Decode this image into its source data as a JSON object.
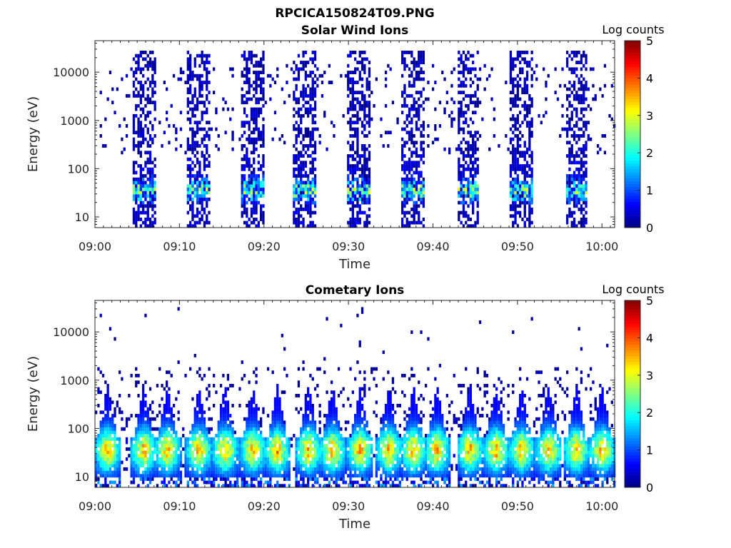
{
  "figure": {
    "title": "RPCICA150824T09.PNG"
  },
  "chart_data": [
    {
      "type": "heatmap",
      "title": "Solar Wind Ions",
      "xlabel": "Time",
      "ylabel": "Energy (eV)",
      "y_scale": "log",
      "ylim": [
        6,
        45000
      ],
      "xlim_minutes": [
        0,
        61.5
      ],
      "x_ticks": [
        "09:00",
        "09:10",
        "09:20",
        "09:30",
        "09:40",
        "09:50",
        "10:00"
      ],
      "y_ticks": [
        "10",
        "100",
        "1000",
        "10000"
      ],
      "colorbar": {
        "label": "Log counts",
        "range": [
          0,
          5
        ],
        "ticks": [
          "0",
          "1",
          "2",
          "3",
          "4",
          "5"
        ],
        "colormap": "jet"
      },
      "burst_centers_minutes": [
        5.9,
        12.2,
        18.6,
        24.9,
        31.3,
        37.7,
        44.2,
        50.5,
        57.0
      ],
      "grid": false
    },
    {
      "type": "heatmap",
      "title": "Cometary Ions",
      "xlabel": "Time",
      "ylabel": "Energy (eV)",
      "y_scale": "log",
      "ylim": [
        6,
        45000
      ],
      "xlim_minutes": [
        0,
        61.5
      ],
      "x_ticks": [
        "09:00",
        "09:10",
        "09:20",
        "09:30",
        "09:40",
        "09:50",
        "10:00"
      ],
      "y_ticks": [
        "10",
        "100",
        "1000",
        "10000"
      ],
      "colorbar": {
        "label": "Log counts",
        "range": [
          0,
          5
        ],
        "ticks": [
          "0",
          "1",
          "2",
          "3",
          "4",
          "5"
        ],
        "colormap": "jet"
      },
      "burst_centers_minutes": [
        1.5,
        5.8,
        8.6,
        12.3,
        15.4,
        18.7,
        21.6,
        25.3,
        28.1,
        31.4,
        34.8,
        37.7,
        40.5,
        44.4,
        47.5,
        50.5,
        53.7,
        57.0,
        60.0
      ],
      "grid": false
    }
  ]
}
